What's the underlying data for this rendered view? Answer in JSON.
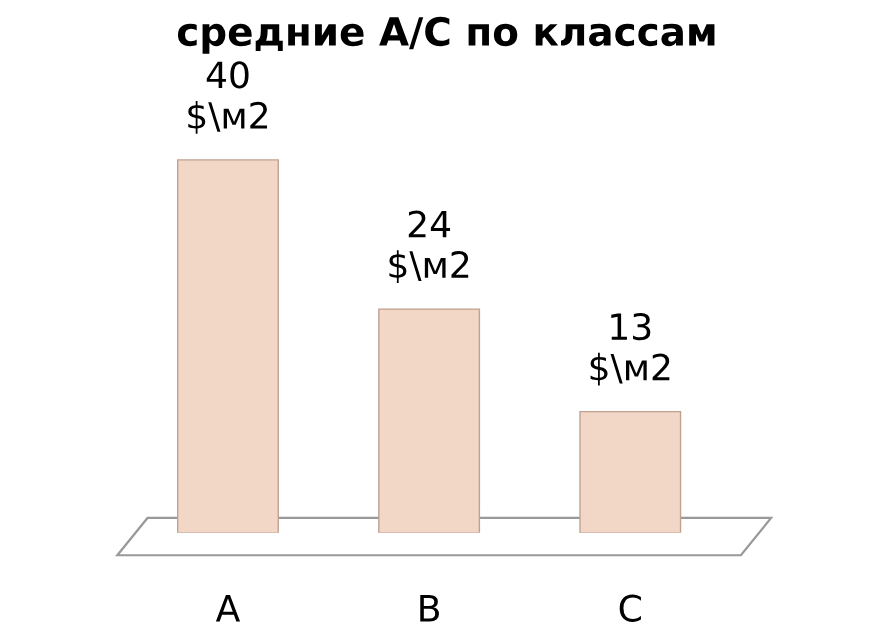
{
  "chart_data": {
    "type": "bar",
    "title": "средние А/С по классам",
    "categories": [
      "A",
      "B",
      "C"
    ],
    "values": [
      40,
      24,
      13
    ],
    "color": "#f2d6c6",
    "value_labels": [
      "40\n$\\м2",
      "24\n$\\м2",
      "13\n$\\м2"
    ],
    "grid": false,
    "legend": false
  }
}
